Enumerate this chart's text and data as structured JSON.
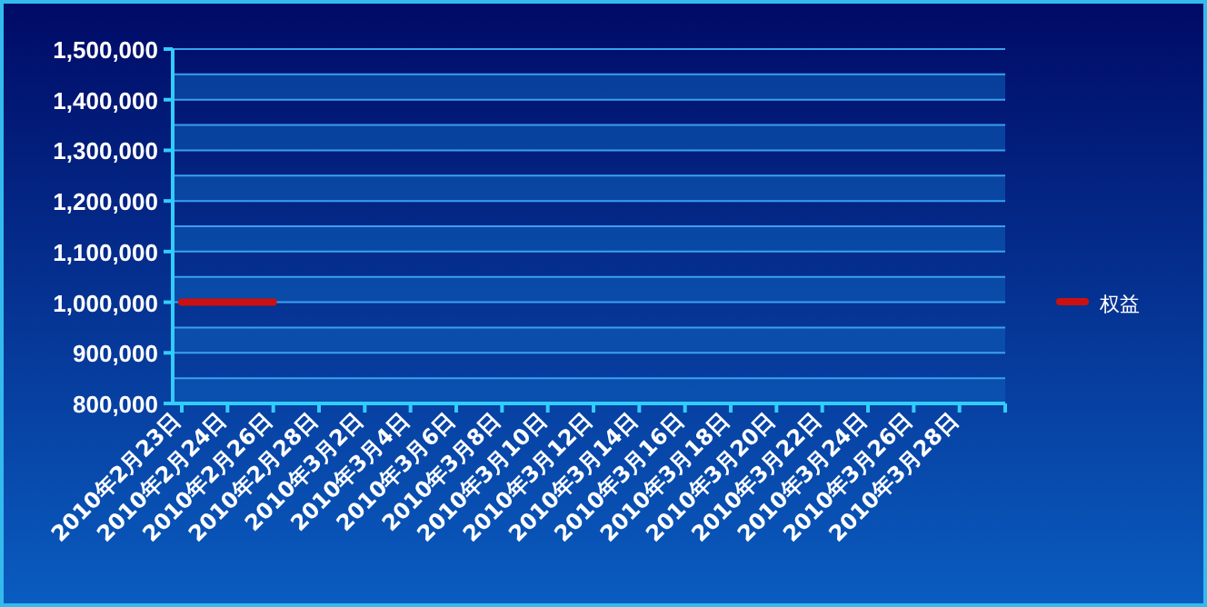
{
  "chart_data": {
    "type": "line",
    "categories": [
      "2010年2月23日",
      "2010年2月24日",
      "2010年2月26日",
      "2010年2月28日",
      "2010年3月2日",
      "2010年3月4日",
      "2010年3月6日",
      "2010年3月8日",
      "2010年3月10日",
      "2010年3月12日",
      "2010年3月14日",
      "2010年3月16日",
      "2010年3月18日",
      "2010年3月20日",
      "2010年3月22日",
      "2010年3月24日",
      "2010年3月26日",
      "2010年3月28日"
    ],
    "series": [
      {
        "name": "权益",
        "color": "#cc1010",
        "values": [
          1000000,
          1000000,
          1000000,
          null,
          null,
          null,
          null,
          null,
          null,
          null,
          null,
          null,
          null,
          null,
          null,
          null,
          null,
          null
        ]
      }
    ],
    "ylim": [
      800000,
      1500000
    ],
    "yticks": [
      {
        "value": 800000,
        "label": "800,000"
      },
      {
        "value": 850000,
        "label": null
      },
      {
        "value": 900000,
        "label": "900,000"
      },
      {
        "value": 950000,
        "label": null
      },
      {
        "value": 1000000,
        "label": "1,000,000"
      },
      {
        "value": 1050000,
        "label": null
      },
      {
        "value": 1100000,
        "label": "1,100,000"
      },
      {
        "value": 1150000,
        "label": null
      },
      {
        "value": 1200000,
        "label": "1,200,000"
      },
      {
        "value": 1250000,
        "label": null
      },
      {
        "value": 1300000,
        "label": "1,300,000"
      },
      {
        "value": 1350000,
        "label": null
      },
      {
        "value": 1400000,
        "label": "1,400,000"
      },
      {
        "value": 1450000,
        "label": null
      },
      {
        "value": 1500000,
        "label": "1,500,000"
      }
    ],
    "grid": "y",
    "legend": "right",
    "marker": "none",
    "line_style": "solid"
  }
}
